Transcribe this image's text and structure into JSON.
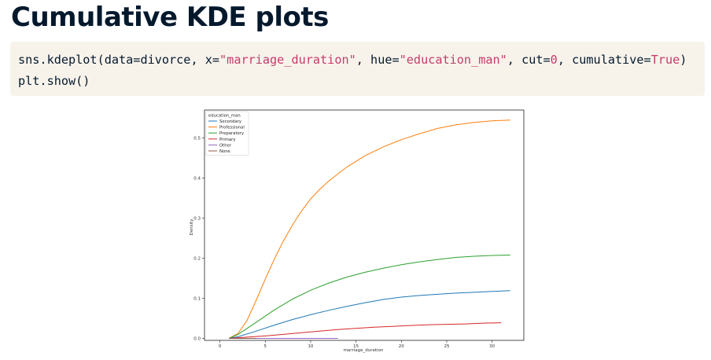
{
  "title": "Cumulative KDE plots",
  "code": {
    "line1": {
      "p1": "sns.kdeplot(data=divorce, x=",
      "s1": "\"marriage_duration\"",
      "p2": ", hue=",
      "s2": "\"education_man\"",
      "p3": ", cut=",
      "n1": "0",
      "p4": ", cumulative=",
      "k1": "True",
      "p5": ")"
    },
    "line2": "plt.show()"
  },
  "chart_data": {
    "type": "line",
    "title": "",
    "xlabel": "marriage_duration",
    "ylabel": "Density",
    "xlim": [
      -1.7,
      33.5
    ],
    "ylim": [
      -0.005,
      0.57
    ],
    "xticks": [
      0,
      5,
      10,
      15,
      20,
      25,
      30
    ],
    "yticks": [
      0.0,
      0.1,
      0.2,
      0.3,
      0.4,
      0.5
    ],
    "xtick_labels": [
      "0",
      "5",
      "10",
      "15",
      "20",
      "25",
      "30"
    ],
    "ytick_labels": [
      "0.0",
      "0.1",
      "0.2",
      "0.3",
      "0.4",
      "0.5"
    ],
    "legend_title": "education_man",
    "legend_position": "upper-left",
    "series": [
      {
        "name": "Secondary",
        "color": "#1f77b4",
        "x": [
          1,
          2,
          4,
          6,
          8,
          10,
          12,
          14,
          16,
          18,
          20,
          22,
          24,
          26,
          28,
          30,
          32
        ],
        "y": [
          0,
          0.004,
          0.018,
          0.033,
          0.047,
          0.059,
          0.07,
          0.08,
          0.089,
          0.097,
          0.103,
          0.107,
          0.11,
          0.113,
          0.115,
          0.117,
          0.119
        ]
      },
      {
        "name": "Professional",
        "color": "#ff7f0e",
        "x": [
          1,
          2,
          3,
          4,
          5,
          6,
          7,
          8,
          9,
          10,
          11,
          12,
          14,
          16,
          18,
          20,
          22,
          24,
          26,
          28,
          30,
          32
        ],
        "y": [
          0,
          0.012,
          0.045,
          0.095,
          0.148,
          0.198,
          0.243,
          0.283,
          0.318,
          0.348,
          0.372,
          0.393,
          0.428,
          0.456,
          0.478,
          0.496,
          0.511,
          0.524,
          0.533,
          0.539,
          0.543,
          0.545
        ]
      },
      {
        "name": "Preparatory",
        "color": "#2ca02c",
        "x": [
          1,
          2,
          4,
          6,
          8,
          10,
          12,
          14,
          16,
          18,
          20,
          22,
          24,
          26,
          28,
          30,
          32
        ],
        "y": [
          0,
          0.01,
          0.04,
          0.071,
          0.098,
          0.12,
          0.138,
          0.153,
          0.165,
          0.175,
          0.184,
          0.191,
          0.197,
          0.202,
          0.205,
          0.207,
          0.208
        ]
      },
      {
        "name": "Primary",
        "color": "#d62728",
        "x": [
          1,
          3,
          5,
          7,
          9,
          11,
          13,
          15,
          17,
          19,
          21,
          23,
          25,
          27,
          29,
          31
        ],
        "y": [
          0,
          0.003,
          0.006,
          0.01,
          0.014,
          0.018,
          0.022,
          0.025,
          0.028,
          0.03,
          0.032,
          0.034,
          0.035,
          0.036,
          0.038,
          0.039
        ]
      },
      {
        "name": "Other",
        "color": "#9467bd",
        "x": [
          1,
          13
        ],
        "y": [
          0,
          0
        ]
      },
      {
        "name": "None",
        "color": "#8c564b",
        "x": [
          1,
          4
        ],
        "y": [
          0,
          0
        ]
      }
    ]
  }
}
